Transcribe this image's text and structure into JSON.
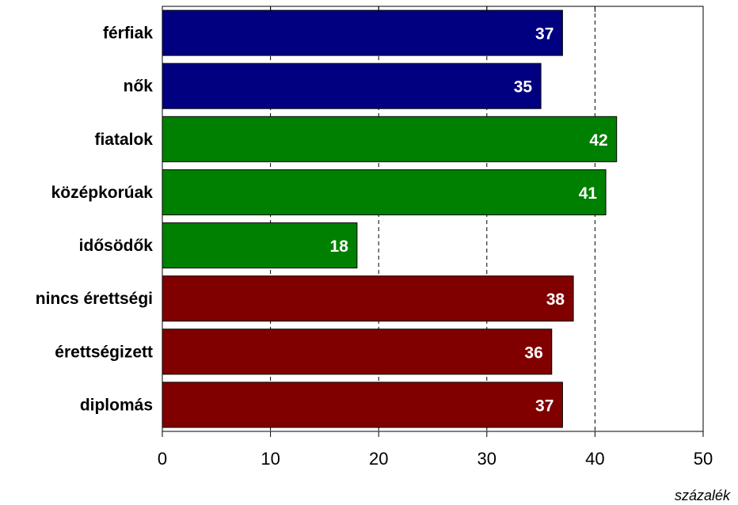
{
  "chart_data": {
    "type": "bar",
    "orientation": "horizontal",
    "categories": [
      "férfiak",
      "nők",
      "fiatalok",
      "középkorúak",
      "idősödők",
      "nincs érettségi",
      "érettségizett",
      "diplomás"
    ],
    "values": [
      37,
      35,
      42,
      41,
      18,
      38,
      36,
      37
    ],
    "bar_colors": [
      "#000080",
      "#000080",
      "#008000",
      "#008000",
      "#008000",
      "#800000",
      "#800000",
      "#800000"
    ],
    "data_labels": [
      "37",
      "35",
      "42",
      "41",
      "18",
      "38",
      "36",
      "37"
    ],
    "xlim": [
      0,
      50
    ],
    "xticks": [
      0,
      10,
      20,
      30,
      40,
      50
    ],
    "xtick_labels": [
      "0",
      "10",
      "20",
      "30",
      "40",
      "50"
    ],
    "xlabel": "százalék",
    "grid": "vertical dashed",
    "legend": "none"
  }
}
